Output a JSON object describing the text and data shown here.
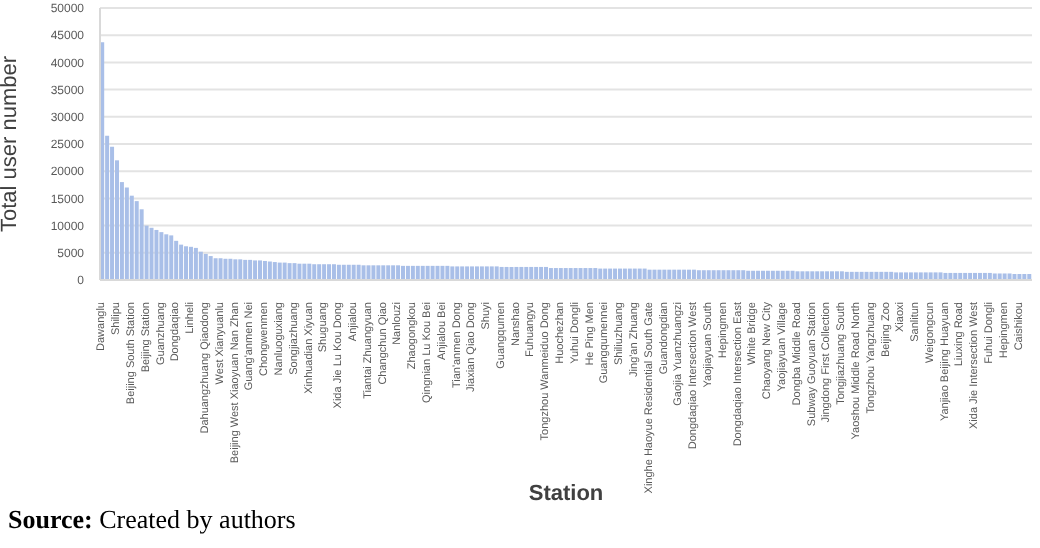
{
  "chart_data": {
    "type": "bar",
    "xlabel": "Station",
    "ylabel": "Total user number",
    "annotations": [
      "Source: Created by authors"
    ],
    "color": "#a9bfe8",
    "grid": "y",
    "ylim": [
      0,
      50000
    ],
    "yticks": [
      0,
      5000,
      10000,
      15000,
      20000,
      25000,
      30000,
      35000,
      40000,
      45000,
      50000
    ],
    "categories": [
      "Dawanglu",
      null,
      null,
      "Shilipu",
      null,
      null,
      "Beijing South Station",
      null,
      null,
      "Beijing Station",
      null,
      null,
      "Guanzhuang",
      null,
      null,
      "Dongdaqiao",
      null,
      null,
      "Linheli",
      null,
      null,
      "Dahuangzhuang Qiaodong",
      null,
      null,
      "West Xianyuanlu",
      null,
      null,
      "Beijing West Xiaoyuan Nan Zhan",
      null,
      null,
      "Guang'anmen Nei",
      null,
      null,
      "Chongwenmen",
      null,
      null,
      "Nanluoguxiang",
      null,
      null,
      "Songjiazhuang",
      null,
      null,
      "Xinhuadian Xiyuan",
      null,
      null,
      "Shuguang",
      null,
      null,
      "Xida Jie Lu Kou Dong",
      null,
      null,
      "Anjialou",
      null,
      null,
      "Tiantai Zhuangyuan",
      null,
      null,
      "Changchun Qiao",
      null,
      null,
      "Nanlouzi",
      null,
      null,
      "Zhaogongkou",
      null,
      null,
      "Qingnian Lu Kou Bei",
      null,
      null,
      "Anjialou Bei",
      null,
      null,
      "Tian'anmen Dong",
      null,
      null,
      "Jiaxian Qiao Dong",
      null,
      null,
      "Shuyi",
      null,
      null,
      "Guangqumen",
      null,
      null,
      "Nanshao",
      null,
      null,
      "Fuhuangyu",
      null,
      null,
      "Tongzhou Wanmeiduo Dong",
      null,
      null,
      "Huochezhan",
      null,
      null,
      "Yuhui Dongli",
      null,
      null,
      "He Ping Men",
      null,
      null,
      "Guangqumennei",
      null,
      null,
      "Shiliuzhuang",
      null,
      null,
      "Jing'an Zhuang",
      null,
      null,
      "Xinghe Haoyue Residential South Gate",
      null,
      null,
      "Guandongdian",
      null,
      null,
      "Gaojia Yuanzhuangzi",
      null,
      null,
      "Dongdaqiao Intersection West",
      null,
      null,
      "Yaojiayuan South",
      null,
      null,
      "Hepingmen",
      null,
      null,
      "Dongdaqiao Intersection East",
      null,
      null,
      "White Bridge",
      null,
      null,
      "Chaoyang New City",
      null,
      null,
      "Yaojiayuan Village",
      null,
      null,
      "Dongba Middle Road",
      null,
      null,
      "Subway Guoyuan Station",
      null,
      null,
      "Jingdong First Collection",
      null,
      null,
      "Tongjiazhuang South",
      null,
      null,
      "Yaoshou Middle Road North",
      null,
      null,
      "Tongzhou Yangzhuang",
      null,
      null,
      "Beijing Zoo",
      null,
      null,
      "Xiaoxi",
      null,
      null,
      "Sanlitun",
      null,
      null,
      "Weigongcun",
      null,
      null,
      "Yanjiao Beijing Huayuan",
      null,
      null,
      "Liuxing Road",
      null,
      null,
      "Xida Jie Intersection West",
      null,
      null,
      "Fuhui Dongli",
      null,
      null,
      "Hepingmen",
      null,
      null,
      "Caishikou",
      null,
      null
    ],
    "values": [
      43700,
      26500,
      24500,
      22000,
      18000,
      17000,
      15500,
      14500,
      13000,
      10000,
      9600,
      9200,
      8800,
      8400,
      8200,
      7200,
      6500,
      6200,
      6100,
      5900,
      5200,
      4800,
      4400,
      4000,
      4000,
      3900,
      3900,
      3800,
      3800,
      3700,
      3700,
      3600,
      3600,
      3500,
      3400,
      3300,
      3200,
      3200,
      3100,
      3100,
      3000,
      3000,
      3000,
      2900,
      2900,
      2900,
      2900,
      2900,
      2800,
      2800,
      2800,
      2800,
      2800,
      2700,
      2700,
      2700,
      2700,
      2700,
      2700,
      2700,
      2700,
      2600,
      2600,
      2600,
      2600,
      2600,
      2600,
      2600,
      2600,
      2600,
      2600,
      2500,
      2500,
      2500,
      2500,
      2500,
      2500,
      2500,
      2500,
      2500,
      2500,
      2400,
      2400,
      2400,
      2400,
      2400,
      2400,
      2400,
      2400,
      2400,
      2400,
      2200,
      2200,
      2200,
      2200,
      2200,
      2200,
      2200,
      2200,
      2200,
      2200,
      2100,
      2100,
      2100,
      2100,
      2100,
      2100,
      2100,
      2100,
      2100,
      2100,
      1900,
      1900,
      1900,
      1900,
      1900,
      1900,
      1900,
      1900,
      1900,
      1900,
      1800,
      1800,
      1800,
      1800,
      1800,
      1800,
      1800,
      1800,
      1800,
      1800,
      1700,
      1700,
      1700,
      1700,
      1700,
      1700,
      1700,
      1700,
      1700,
      1700,
      1600,
      1600,
      1600,
      1600,
      1600,
      1600,
      1600,
      1600,
      1600,
      1600,
      1500,
      1500,
      1500,
      1500,
      1500,
      1500,
      1500,
      1500,
      1500,
      1500,
      1400,
      1400,
      1400,
      1400,
      1400,
      1400,
      1400,
      1400,
      1400,
      1400,
      1300,
      1300,
      1300,
      1300,
      1300,
      1300,
      1300,
      1300,
      1300,
      1300,
      1200,
      1200,
      1200,
      1200,
      1100,
      1100,
      1100,
      1100
    ]
  }
}
